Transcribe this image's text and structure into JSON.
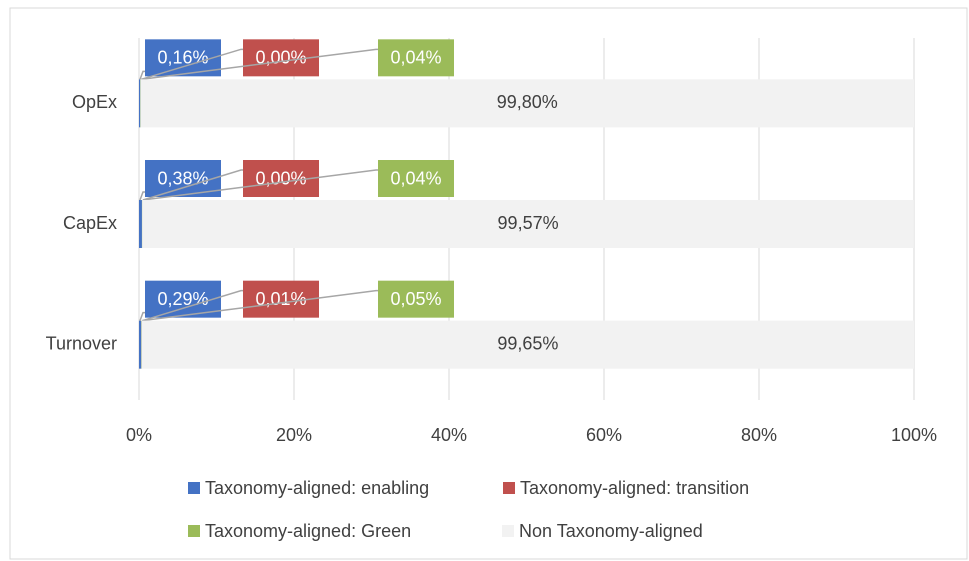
{
  "chart_data": {
    "type": "stacked-bar-horizontal",
    "categories": [
      "OpEx",
      "CapEx",
      "Turnover"
    ],
    "series": [
      {
        "name": "Taxonomy-aligned: enabling",
        "color": "#4472c4",
        "values": [
          0.16,
          0.38,
          0.29
        ],
        "value_labels": [
          "0,16%",
          "0,38%",
          "0,29%"
        ]
      },
      {
        "name": "Taxonomy-aligned: transition",
        "color": "#c0504d",
        "values": [
          0.0,
          0.0,
          0.01
        ],
        "value_labels": [
          "0,00%",
          "0,00%",
          "0,01%"
        ]
      },
      {
        "name": "Taxonomy-aligned: Green",
        "color": "#9bbb59",
        "values": [
          0.04,
          0.04,
          0.05
        ],
        "value_labels": [
          "0,04%",
          "0,04%",
          "0,05%"
        ]
      },
      {
        "name": "Non Taxonomy-aligned",
        "color": "#f2f2f2",
        "values": [
          99.8,
          99.57,
          99.65
        ],
        "value_labels": [
          "99,80%",
          "99,57%",
          "99,65%"
        ]
      }
    ],
    "xlim": [
      0,
      100
    ],
    "xticks": [
      {
        "value": 0,
        "label": "0%"
      },
      {
        "value": 20,
        "label": "20%"
      },
      {
        "value": 40,
        "label": "40%"
      },
      {
        "value": 60,
        "label": "60%"
      },
      {
        "value": 80,
        "label": "80%"
      },
      {
        "value": 100,
        "label": "100%"
      }
    ],
    "grid": true
  }
}
